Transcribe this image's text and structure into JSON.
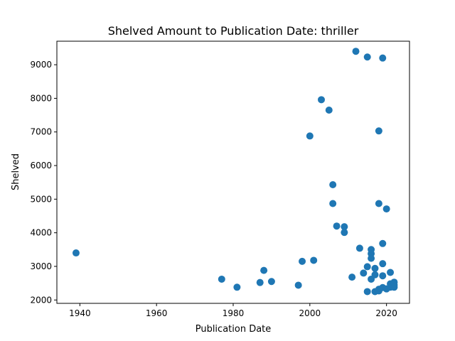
{
  "chart_data": {
    "type": "scatter",
    "title": "Shelved Amount to Publication Date: thriller",
    "xlabel": "Publication Date",
    "ylabel": "Shelved",
    "xlim": [
      1934,
      2026
    ],
    "ylim": [
      1900,
      9700
    ],
    "xticks": [
      1940,
      1960,
      1980,
      2000,
      2020
    ],
    "yticks": [
      2000,
      3000,
      4000,
      5000,
      6000,
      7000,
      8000,
      9000
    ],
    "grid": false,
    "marker_color": "#1f77b4",
    "series": [
      {
        "x": [
          1939,
          1977,
          1981,
          1987,
          1988,
          1990,
          1997,
          1998,
          2000,
          2001,
          2003,
          2005,
          2006,
          2006,
          2007,
          2009,
          2009,
          2011,
          2012,
          2013,
          2014,
          2015,
          2015,
          2015,
          2016,
          2016,
          2016,
          2016,
          2017,
          2017,
          2017,
          2018,
          2018,
          2018,
          2018,
          2019,
          2019,
          2019,
          2019,
          2019,
          2020,
          2020,
          2021,
          2021,
          2021,
          2022,
          2022,
          2022
        ],
        "y": [
          3400,
          2620,
          2380,
          2520,
          2880,
          2550,
          2440,
          3150,
          6880,
          3180,
          7960,
          7650,
          5430,
          4870,
          4200,
          4180,
          4010,
          2680,
          9400,
          3540,
          2800,
          9230,
          2990,
          2250,
          3500,
          3380,
          3240,
          2620,
          2940,
          2750,
          2250,
          7030,
          4870,
          2320,
          2270,
          9200,
          3680,
          3080,
          2720,
          2370,
          4710,
          2330,
          2820,
          2480,
          2380,
          2530,
          2450,
          2380
        ]
      }
    ]
  }
}
